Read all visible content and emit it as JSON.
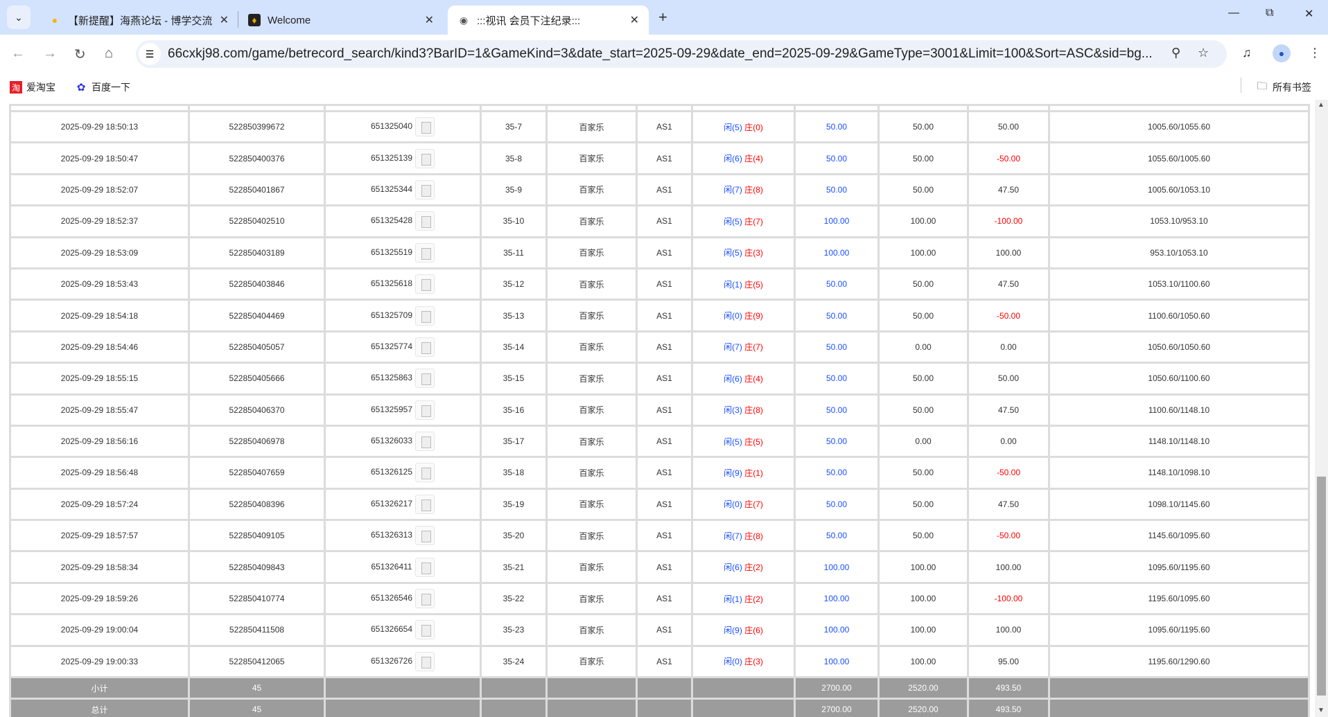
{
  "browser": {
    "tabs": [
      {
        "title": "【新提醒】海燕论坛 - 博学交流",
        "icon": "lightbulb-icon"
      },
      {
        "title": "Welcome",
        "icon": "site-logo-icon"
      },
      {
        "title": ":::视讯 会员下注纪录:::",
        "icon": "globe-icon",
        "active": true
      }
    ],
    "url": "66cxkj98.com/game/betrecord_search/kind3?BarID=1&GameKind=3&date_start=2025-09-29&date_end=2025-09-29&GameType=3001&Limit=100&Sort=ASC&sid=bg...",
    "bookmarks": [
      {
        "label": "爱淘宝",
        "icon": "taobao-icon"
      },
      {
        "label": "百度一下",
        "icon": "baidu-paw-icon"
      }
    ],
    "all_bookmarks": "所有书签"
  },
  "colors": {
    "blue": "#1a4fff",
    "red": "#ff0000",
    "summary_bg": "#9c9c9c"
  },
  "rows": [
    [
      "2025-09-29 18:50:13",
      "522850399672",
      "651325040",
      "35-7",
      "百家乐",
      "AS1",
      "5",
      "0",
      "50.00",
      "50.00",
      "50.00",
      "1005.60/1055.60"
    ],
    [
      "2025-09-29 18:50:47",
      "522850400376",
      "651325139",
      "35-8",
      "百家乐",
      "AS1",
      "6",
      "4",
      "50.00",
      "50.00",
      "-50.00",
      "1055.60/1005.60"
    ],
    [
      "2025-09-29 18:52:07",
      "522850401867",
      "651325344",
      "35-9",
      "百家乐",
      "AS1",
      "7",
      "8",
      "50.00",
      "50.00",
      "47.50",
      "1005.60/1053.10"
    ],
    [
      "2025-09-29 18:52:37",
      "522850402510",
      "651325428",
      "35-10",
      "百家乐",
      "AS1",
      "5",
      "7",
      "100.00",
      "100.00",
      "-100.00",
      "1053.10/953.10"
    ],
    [
      "2025-09-29 18:53:09",
      "522850403189",
      "651325519",
      "35-11",
      "百家乐",
      "AS1",
      "5",
      "3",
      "100.00",
      "100.00",
      "100.00",
      "953.10/1053.10"
    ],
    [
      "2025-09-29 18:53:43",
      "522850403846",
      "651325618",
      "35-12",
      "百家乐",
      "AS1",
      "1",
      "5",
      "50.00",
      "50.00",
      "47.50",
      "1053.10/1100.60"
    ],
    [
      "2025-09-29 18:54:18",
      "522850404469",
      "651325709",
      "35-13",
      "百家乐",
      "AS1",
      "0",
      "9",
      "50.00",
      "50.00",
      "-50.00",
      "1100.60/1050.60"
    ],
    [
      "2025-09-29 18:54:46",
      "522850405057",
      "651325774",
      "35-14",
      "百家乐",
      "AS1",
      "7",
      "7",
      "50.00",
      "0.00",
      "0.00",
      "1050.60/1050.60"
    ],
    [
      "2025-09-29 18:55:15",
      "522850405666",
      "651325863",
      "35-15",
      "百家乐",
      "AS1",
      "6",
      "4",
      "50.00",
      "50.00",
      "50.00",
      "1050.60/1100.60"
    ],
    [
      "2025-09-29 18:55:47",
      "522850406370",
      "651325957",
      "35-16",
      "百家乐",
      "AS1",
      "3",
      "8",
      "50.00",
      "50.00",
      "47.50",
      "1100.60/1148.10"
    ],
    [
      "2025-09-29 18:56:16",
      "522850406978",
      "651326033",
      "35-17",
      "百家乐",
      "AS1",
      "5",
      "5",
      "50.00",
      "0.00",
      "0.00",
      "1148.10/1148.10"
    ],
    [
      "2025-09-29 18:56:48",
      "522850407659",
      "651326125",
      "35-18",
      "百家乐",
      "AS1",
      "9",
      "1",
      "50.00",
      "50.00",
      "-50.00",
      "1148.10/1098.10"
    ],
    [
      "2025-09-29 18:57:24",
      "522850408396",
      "651326217",
      "35-19",
      "百家乐",
      "AS1",
      "0",
      "7",
      "50.00",
      "50.00",
      "47.50",
      "1098.10/1145.60"
    ],
    [
      "2025-09-29 18:57:57",
      "522850409105",
      "651326313",
      "35-20",
      "百家乐",
      "AS1",
      "7",
      "8",
      "50.00",
      "50.00",
      "-50.00",
      "1145.60/1095.60"
    ],
    [
      "2025-09-29 18:58:34",
      "522850409843",
      "651326411",
      "35-21",
      "百家乐",
      "AS1",
      "6",
      "2",
      "100.00",
      "100.00",
      "100.00",
      "1095.60/1195.60"
    ],
    [
      "2025-09-29 18:59:26",
      "522850410774",
      "651326546",
      "35-22",
      "百家乐",
      "AS1",
      "1",
      "2",
      "100.00",
      "100.00",
      "-100.00",
      "1195.60/1095.60"
    ],
    [
      "2025-09-29 19:00:04",
      "522850411508",
      "651326654",
      "35-23",
      "百家乐",
      "AS1",
      "9",
      "6",
      "100.00",
      "100.00",
      "100.00",
      "1095.60/1195.60"
    ],
    [
      "2025-09-29 19:00:33",
      "522850412065",
      "651326726",
      "35-24",
      "百家乐",
      "AS1",
      "0",
      "3",
      "100.00",
      "100.00",
      "95.00",
      "1195.60/1290.60"
    ]
  ],
  "result_labels": {
    "player": "闲",
    "banker": "庄"
  },
  "subtotal": {
    "label": "小计",
    "count": "45",
    "bet": "2700.00",
    "valid": "2520.00",
    "win": "493.50"
  },
  "total": {
    "label": "总计",
    "count": "45",
    "bet": "2700.00",
    "valid": "2520.00",
    "win": "493.50"
  }
}
